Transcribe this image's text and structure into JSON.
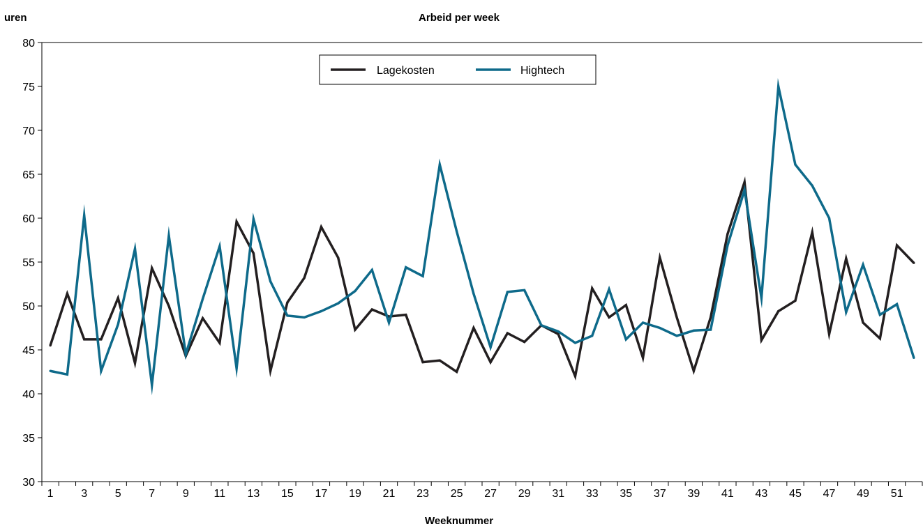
{
  "chart_data": {
    "type": "line",
    "title": "Arbeid per week",
    "ylabel": "uren",
    "xlabel": "Weeknummer",
    "ylim": [
      30,
      80
    ],
    "yticks": [
      30,
      35,
      40,
      45,
      50,
      55,
      60,
      65,
      70,
      75,
      80
    ],
    "xticks": [
      1,
      3,
      5,
      7,
      9,
      11,
      13,
      15,
      17,
      19,
      21,
      23,
      25,
      27,
      29,
      31,
      33,
      35,
      37,
      39,
      41,
      43,
      45,
      47,
      49,
      51
    ],
    "x": [
      1,
      2,
      3,
      4,
      5,
      6,
      7,
      8,
      9,
      10,
      11,
      12,
      13,
      14,
      15,
      16,
      17,
      18,
      19,
      20,
      21,
      22,
      23,
      24,
      25,
      26,
      27,
      28,
      29,
      30,
      31,
      32,
      33,
      34,
      35,
      36,
      37,
      38,
      39,
      40,
      41,
      42,
      43,
      44,
      45,
      46,
      47,
      48,
      49,
      50,
      51,
      52
    ],
    "grid": false,
    "legend_position": "top-center",
    "series": [
      {
        "name": "Lagekosten",
        "color": "#231f20",
        "values": [
          45.5,
          51.4,
          46.2,
          46.2,
          50.9,
          43.5,
          54.3,
          50.0,
          44.3,
          48.6,
          45.8,
          59.6,
          56.0,
          42.6,
          50.4,
          53.2,
          59.0,
          55.5,
          47.3,
          49.6,
          48.8,
          49.0,
          43.6,
          43.8,
          42.5,
          47.5,
          43.6,
          46.9,
          45.9,
          47.8,
          46.8,
          42.0,
          52.0,
          48.7,
          50.1,
          44.1,
          55.5,
          48.7,
          42.6,
          48.7,
          58.2,
          64.1,
          46.1,
          49.4,
          50.6,
          58.4,
          46.8,
          55.4,
          48.1,
          46.3,
          56.9,
          54.9
        ]
      },
      {
        "name": "Hightech",
        "color": "#0e6a8a",
        "values": [
          42.6,
          42.2,
          60.3,
          42.6,
          47.9,
          56.5,
          41.0,
          58.0,
          44.5,
          50.8,
          56.8,
          42.9,
          59.9,
          52.8,
          48.9,
          48.7,
          49.4,
          50.3,
          51.7,
          54.1,
          48.1,
          54.4,
          53.4,
          66.1,
          58.5,
          51.4,
          45.3,
          51.6,
          51.8,
          47.8,
          47.1,
          45.8,
          46.6,
          51.9,
          46.2,
          48.1,
          47.5,
          46.6,
          47.2,
          47.3,
          56.9,
          63.2,
          50.9,
          75.0,
          66.1,
          63.7,
          60.0,
          49.3,
          54.7,
          49.0,
          50.2,
          44.1
        ]
      }
    ]
  }
}
